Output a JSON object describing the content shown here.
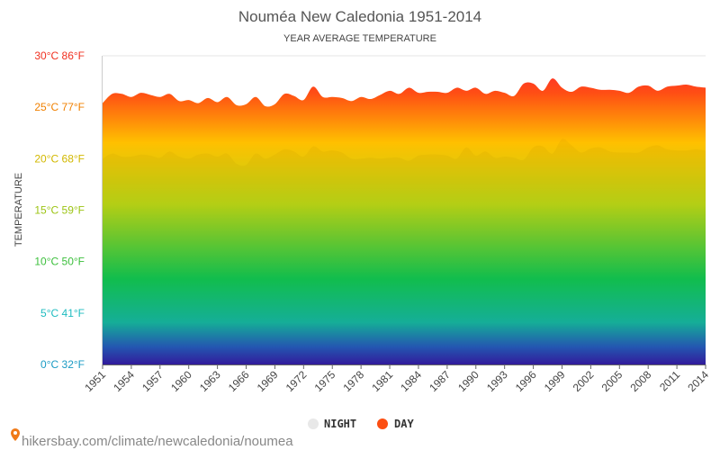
{
  "chart_data": {
    "type": "area",
    "title": "Nouméa New Caledonia 1951-2014",
    "subtitle": "YEAR AVERAGE TEMPERATURE",
    "ylabel": "TEMPERATURE",
    "ylim": [
      0,
      30
    ],
    "y_ticks": [
      {
        "value": 0,
        "label": "0°C 32°F",
        "color": "#1a9bc4"
      },
      {
        "value": 5,
        "label": "5°C 41°F",
        "color": "#1fbcc0"
      },
      {
        "value": 10,
        "label": "10°C 50°F",
        "color": "#3cbf3c"
      },
      {
        "value": 15,
        "label": "15°C 59°F",
        "color": "#9cc414"
      },
      {
        "value": 20,
        "label": "20°C 68°F",
        "color": "#d2b800"
      },
      {
        "value": 25,
        "label": "25°C 77°F",
        "color": "#f08000"
      },
      {
        "value": 30,
        "label": "30°C 86°F",
        "color": "#f03020"
      }
    ],
    "x": [
      1951,
      1952,
      1953,
      1954,
      1955,
      1956,
      1957,
      1958,
      1959,
      1960,
      1961,
      1962,
      1963,
      1964,
      1965,
      1966,
      1967,
      1968,
      1969,
      1970,
      1971,
      1972,
      1973,
      1974,
      1975,
      1976,
      1977,
      1978,
      1979,
      1980,
      1981,
      1982,
      1983,
      1984,
      1985,
      1986,
      1987,
      1988,
      1989,
      1990,
      1991,
      1992,
      1993,
      1994,
      1995,
      1996,
      1997,
      1998,
      1999,
      2000,
      2001,
      2002,
      2003,
      2004,
      2005,
      2006,
      2007,
      2008,
      2009,
      2010,
      2011,
      2012,
      2013,
      2014
    ],
    "x_tick_labels": [
      "1951",
      "1954",
      "1957",
      "1960",
      "1963",
      "1966",
      "1969",
      "1972",
      "1975",
      "1978",
      "1981",
      "1984",
      "1987",
      "1990",
      "1993",
      "1996",
      "1999",
      "2002",
      "2005",
      "2008",
      "2011",
      "2014"
    ],
    "series": [
      {
        "name": "NIGHT",
        "color": "#e8e8e8",
        "values": [
          20.0,
          20.5,
          20.2,
          20.2,
          20.4,
          20.3,
          20.1,
          20.7,
          20.2,
          20.0,
          20.4,
          20.5,
          20.2,
          20.5,
          19.5,
          19.4,
          20.5,
          20.0,
          20.4,
          20.9,
          20.7,
          20.2,
          21.2,
          20.7,
          20.8,
          20.6,
          20.0,
          20.0,
          20.1,
          20.0,
          20.1,
          20.1,
          19.8,
          20.3,
          20.4,
          20.4,
          20.3,
          20.0,
          21.1,
          20.3,
          20.7,
          20.1,
          20.2,
          20.1,
          19.9,
          21.1,
          21.2,
          20.5,
          21.9,
          21.3,
          20.6,
          21.0,
          21.1,
          20.7,
          20.6,
          20.6,
          20.6,
          21.1,
          21.3,
          20.9,
          20.8,
          20.8,
          20.9,
          20.8
        ]
      },
      {
        "name": "DAY",
        "color": "#fc4e12",
        "values": [
          25.4,
          26.3,
          26.3,
          26.0,
          26.4,
          26.2,
          26.0,
          26.3,
          25.6,
          25.7,
          25.4,
          25.9,
          25.5,
          26.0,
          25.2,
          25.3,
          26.0,
          25.1,
          25.3,
          26.3,
          26.1,
          25.7,
          27.0,
          26.0,
          26.0,
          25.9,
          25.6,
          26.0,
          25.8,
          26.2,
          26.6,
          26.3,
          26.9,
          26.4,
          26.5,
          26.5,
          26.4,
          26.9,
          26.6,
          26.9,
          26.3,
          26.6,
          26.4,
          26.1,
          27.3,
          27.3,
          26.6,
          27.8,
          26.9,
          26.5,
          27.0,
          26.9,
          26.7,
          26.7,
          26.6,
          26.4,
          27.0,
          27.1,
          26.6,
          27.0,
          27.1,
          27.2,
          27.0,
          26.9
        ]
      }
    ],
    "legend_position": "bottom-center",
    "grid": true
  },
  "source_text": "hikersbay.com/climate/newcaledonia/noumea",
  "colors": {
    "gradient_top": "#ff1a3a",
    "gradient_bottom": "#2a10a8"
  }
}
